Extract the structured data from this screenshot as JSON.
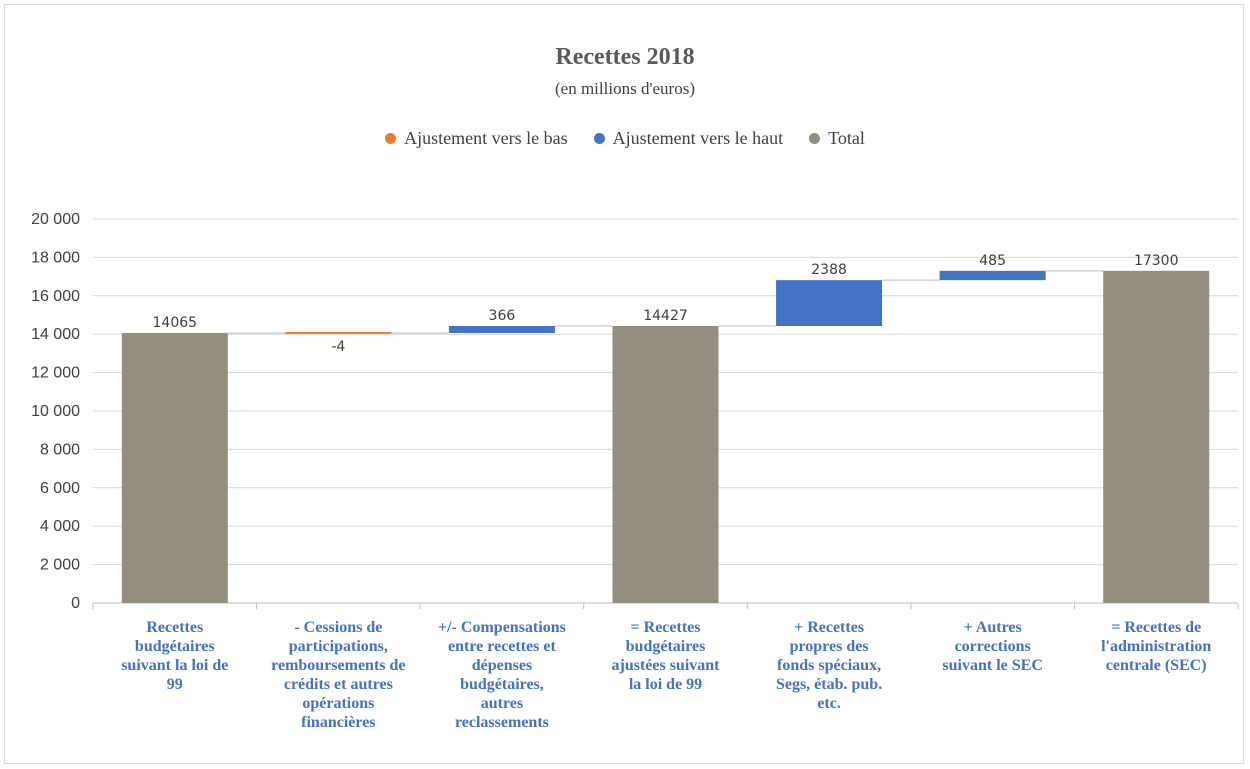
{
  "chart_data": {
    "type": "waterfall",
    "title": "Recettes 2018",
    "subtitle": "(en millions d'euros)",
    "legend": [
      {
        "name": "Ajustement vers le bas",
        "color": "#ed7d31"
      },
      {
        "name": "Ajustement vers le haut",
        "color": "#4472c4"
      },
      {
        "name": "Total",
        "color": "#948e80"
      }
    ],
    "legend_position": "top",
    "grid": true,
    "ylim": [
      0,
      20000
    ],
    "yticks": [
      0,
      2000,
      4000,
      6000,
      8000,
      10000,
      12000,
      14000,
      16000,
      18000,
      20000
    ],
    "ytick_labels": [
      "0",
      "2 000",
      "4 000",
      "6 000",
      "8 000",
      "10 000",
      "12 000",
      "14 000",
      "16 000",
      "18 000",
      "20 000"
    ],
    "categories": [
      "Recettes budgétaires suivant la loi de 99",
      "- Cessions de participations, remboursements de crédits et autres opérations financières",
      "+/- Compensations entre recettes et dépenses budgétaires, autres reclassements",
      "= Recettes budgétaires ajustées suivant la loi de 99",
      "+ Recettes propres des fonds spéciaux, Segs, étab. pub. etc.",
      "+ Autres corrections suivant le SEC",
      "= Recettes de l'administration centrale (SEC)"
    ],
    "category_lines": [
      [
        "Recettes",
        "budgétaires",
        "suivant la loi de",
        "99"
      ],
      [
        "- Cessions de",
        "participations,",
        "remboursements de",
        "crédits et autres",
        "opérations",
        "financières"
      ],
      [
        "+/- Compensations",
        "entre recettes et",
        "dépenses",
        "budgétaires,",
        "autres",
        "reclassements"
      ],
      [
        "= Recettes",
        "budgétaires",
        "ajustées suivant",
        "la loi de 99"
      ],
      [
        "+ Recettes",
        "propres des",
        "fonds spéciaux,",
        "Segs, étab. pub.",
        "etc."
      ],
      [
        "+ Autres",
        "corrections",
        "suivant le SEC"
      ],
      [
        "= Recettes de",
        "l'administration",
        "centrale (SEC)"
      ]
    ],
    "values": [
      14065,
      -4,
      366,
      14427,
      2388,
      485,
      17300
    ],
    "labels": [
      "14065",
      "-4",
      "366",
      "14427",
      "2388",
      "485",
      "17300"
    ],
    "kinds": [
      "total",
      "down",
      "up",
      "total",
      "up",
      "up",
      "total"
    ]
  }
}
